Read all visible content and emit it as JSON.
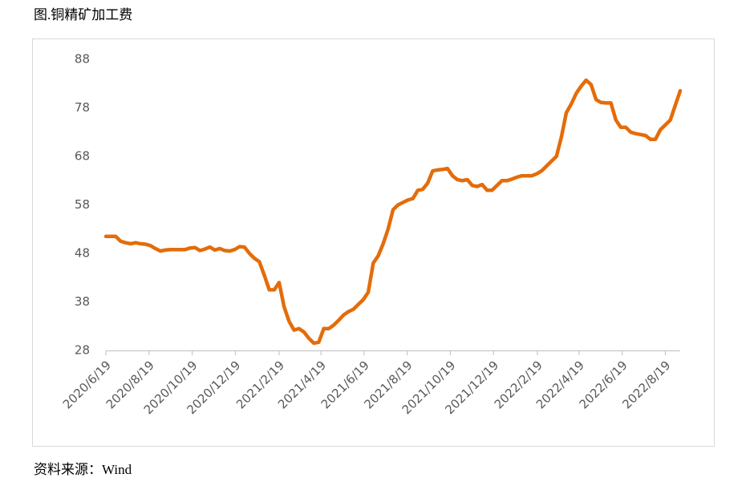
{
  "chart_data": {
    "type": "line",
    "title": "图.铜精矿加工费",
    "source": "资料来源：Wind",
    "x": [
      "2020/6/19",
      "2020/6/26",
      "2020/7/3",
      "2020/7/10",
      "2020/7/17",
      "2020/7/24",
      "2020/7/31",
      "2020/8/7",
      "2020/8/14",
      "2020/8/21",
      "2020/8/28",
      "2020/9/4",
      "2020/9/11",
      "2020/9/18",
      "2020/9/25",
      "2020/10/2",
      "2020/10/9",
      "2020/10/16",
      "2020/10/23",
      "2020/10/30",
      "2020/11/6",
      "2020/11/13",
      "2020/11/20",
      "2020/11/27",
      "2020/12/4",
      "2020/12/11",
      "2020/12/18",
      "2020/12/25",
      "2021/1/1",
      "2021/1/8",
      "2021/1/15",
      "2021/1/22",
      "2021/1/29",
      "2021/2/5",
      "2021/2/12",
      "2021/2/19",
      "2021/2/26",
      "2021/3/5",
      "2021/3/12",
      "2021/3/19",
      "2021/3/26",
      "2021/4/2",
      "2021/4/9",
      "2021/4/16",
      "2021/4/23",
      "2021/4/30",
      "2021/5/7",
      "2021/5/14",
      "2021/5/21",
      "2021/5/28",
      "2021/6/4",
      "2021/6/11",
      "2021/6/18",
      "2021/6/25",
      "2021/7/2",
      "2021/7/9",
      "2021/7/16",
      "2021/7/23",
      "2021/7/30",
      "2021/8/6",
      "2021/8/13",
      "2021/8/20",
      "2021/8/27",
      "2021/9/3",
      "2021/9/10",
      "2021/9/17",
      "2021/9/24",
      "2021/10/1",
      "2021/10/8",
      "2021/10/15",
      "2021/10/22",
      "2021/10/29",
      "2021/11/5",
      "2021/11/12",
      "2021/11/19",
      "2021/11/26",
      "2021/12/3",
      "2021/12/10",
      "2021/12/17",
      "2021/12/24",
      "2021/12/31",
      "2022/1/7",
      "2022/1/14",
      "2022/1/21",
      "2022/1/28",
      "2022/2/4",
      "2022/2/11",
      "2022/2/18",
      "2022/2/25",
      "2022/3/4",
      "2022/3/11",
      "2022/3/18",
      "2022/3/25",
      "2022/4/1",
      "2022/4/8",
      "2022/4/15",
      "2022/4/22",
      "2022/4/29",
      "2022/5/6",
      "2022/5/13",
      "2022/5/20",
      "2022/5/27",
      "2022/6/3",
      "2022/6/10",
      "2022/6/17",
      "2022/6/24",
      "2022/7/1",
      "2022/7/8",
      "2022/7/15",
      "2022/7/22",
      "2022/7/29",
      "2022/8/5",
      "2022/8/12",
      "2022/8/19",
      "2022/8/26",
      "2022/9/2",
      "2022/9/9"
    ],
    "series": [
      {
        "color": "#e46c0a",
        "values": [
          51.5,
          51.5,
          51.5,
          50.5,
          50.2,
          50,
          50.2,
          50,
          49.9,
          49.6,
          49,
          48.5,
          48.7,
          48.8,
          48.8,
          48.8,
          48.8,
          49.1,
          49.2,
          48.6,
          48.9,
          49.3,
          48.7,
          49,
          48.6,
          48.5,
          48.8,
          49.4,
          49.3,
          48,
          47,
          46.3,
          43.5,
          40.5,
          40.5,
          42,
          37,
          34,
          32.2,
          32.5,
          31.8,
          30.5,
          29.5,
          29.7,
          32.5,
          32.5,
          33.2,
          34.2,
          35.3,
          36,
          36.5,
          37.5,
          38.5,
          40,
          46,
          47.5,
          50,
          53,
          57,
          58,
          58.5,
          59,
          59.3,
          61,
          61.2,
          62.5,
          65,
          65.2,
          65.3,
          65.5,
          64,
          63.2,
          63,
          63.2,
          62,
          61.8,
          62.2,
          61,
          61,
          62,
          63,
          63,
          63.3,
          63.7,
          64,
          64,
          64,
          64.4,
          65,
          66,
          67,
          68,
          72,
          77,
          78.8,
          81,
          82.5,
          83.7,
          82.8,
          79.7,
          79.1,
          79,
          79,
          75.5,
          74,
          74,
          73,
          72.7,
          72.5,
          72.3,
          71.5,
          71.5,
          73.5,
          74.5,
          75.5,
          78.5,
          81.5
        ]
      }
    ],
    "xlim": [
      "2020/6/19",
      "2022/9/9"
    ],
    "xticks": [
      "2020/6/19",
      "2020/8/19",
      "2020/10/19",
      "2020/12/19",
      "2021/2/19",
      "2021/4/19",
      "2021/6/19",
      "2021/8/19",
      "2021/10/19",
      "2021/12/19",
      "2022/2/19",
      "2022/4/19",
      "2022/6/19",
      "2022/8/19"
    ],
    "ylim": [
      28,
      88
    ],
    "yticks": [
      28,
      38,
      48,
      58,
      68,
      78,
      88
    ],
    "grid": false
  }
}
